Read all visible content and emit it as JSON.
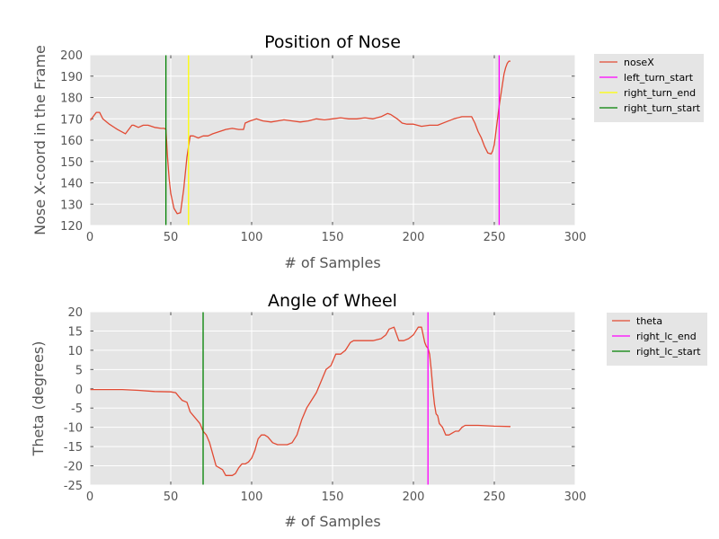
{
  "chart_data": [
    {
      "type": "line",
      "title": "Position of Nose",
      "xlabel": "# of Samples",
      "ylabel": "Nose X-coord in the Frame",
      "xlim": [
        0,
        300
      ],
      "ylim": [
        120,
        200
      ],
      "xticks": [
        0,
        50,
        100,
        150,
        200,
        250,
        300
      ],
      "yticks": [
        120,
        130,
        140,
        150,
        160,
        170,
        180,
        190,
        200
      ],
      "grid": true,
      "legend_position": "outside-right",
      "background": "#e5e5e5",
      "series": [
        {
          "name": "noseX",
          "color": "#e24a33",
          "x": [
            0,
            2,
            4,
            6,
            8,
            12,
            17,
            22,
            26,
            27,
            30,
            33,
            36,
            40,
            44,
            46,
            47,
            48,
            49,
            50,
            52,
            54,
            56,
            58,
            60,
            62,
            64,
            67,
            70,
            73,
            76,
            80,
            84,
            88,
            92,
            95,
            96,
            99,
            103,
            107,
            112,
            116,
            120,
            125,
            130,
            135,
            140,
            145,
            150,
            155,
            160,
            165,
            170,
            175,
            180,
            184,
            186,
            188,
            190,
            193,
            196,
            200,
            205,
            210,
            215,
            220,
            225,
            230,
            233,
            236,
            238,
            240,
            242,
            244,
            246,
            248,
            249,
            250,
            251,
            252,
            253,
            254,
            255,
            256,
            257,
            258,
            259,
            260
          ],
          "y": [
            169,
            171,
            173,
            173,
            170,
            167.5,
            165,
            163,
            167,
            167,
            166,
            167,
            167,
            166,
            165.5,
            165.5,
            165,
            152,
            142,
            135,
            128,
            125.5,
            126,
            137,
            152,
            162,
            162,
            161,
            162,
            162,
            163,
            164,
            165,
            165.5,
            165,
            165,
            168,
            169,
            170,
            169,
            168.5,
            169,
            169.5,
            169,
            168.5,
            169,
            170,
            169.5,
            170,
            170.5,
            170,
            170,
            170.5,
            170,
            171,
            172.5,
            172,
            171,
            170,
            168,
            167.5,
            167.5,
            166.5,
            167,
            167,
            168.5,
            170,
            171,
            171,
            171,
            168,
            164,
            161,
            157,
            154,
            153.5,
            155,
            158,
            164,
            170,
            176,
            181,
            186,
            191,
            194,
            196,
            197,
            197
          ]
        },
        {
          "name": "left_turn_start",
          "color": "#ff00ff",
          "x_line": 253
        },
        {
          "name": "right_turn_end",
          "color": "#ffff00",
          "x_line": 61
        },
        {
          "name": "right_turn_start",
          "color": "#008000",
          "x_line": 47
        }
      ]
    },
    {
      "type": "line",
      "title": "Angle of Wheel",
      "xlabel": "# of Samples",
      "ylabel": "Theta (degrees)",
      "xlim": [
        0,
        300
      ],
      "ylim": [
        -25,
        20
      ],
      "xticks": [
        0,
        50,
        100,
        150,
        200,
        250,
        300
      ],
      "yticks": [
        -25,
        -20,
        -15,
        -10,
        -5,
        0,
        5,
        10,
        15,
        20
      ],
      "grid": true,
      "legend_position": "outside-right",
      "background": "#e5e5e5",
      "series": [
        {
          "name": "theta",
          "color": "#e24a33",
          "x": [
            0,
            10,
            20,
            30,
            40,
            50,
            53,
            55,
            57,
            60,
            62,
            64,
            66,
            68,
            70,
            72,
            74,
            76,
            78,
            80,
            82,
            84,
            86,
            88,
            90,
            92,
            94,
            96,
            98,
            100,
            102,
            104,
            106,
            108,
            110,
            113,
            116,
            119,
            122,
            125,
            128,
            131,
            134,
            137,
            140,
            143,
            146,
            149,
            152,
            155,
            158,
            161,
            163,
            165,
            170,
            175,
            180,
            183,
            185,
            188,
            191,
            194,
            197,
            200,
            203,
            205,
            207,
            208,
            209,
            210,
            211,
            212,
            213,
            214,
            215,
            216,
            218,
            220,
            222,
            224,
            226,
            228,
            230,
            232,
            240,
            250,
            260
          ],
          "y": [
            -0.2,
            -0.2,
            -0.2,
            -0.4,
            -0.7,
            -0.8,
            -1,
            -2,
            -3,
            -3.5,
            -6,
            -7,
            -8,
            -9,
            -11,
            -12,
            -14,
            -17,
            -20,
            -20.5,
            -21,
            -22.5,
            -22.5,
            -22.5,
            -22,
            -20.5,
            -19.5,
            -19.5,
            -19,
            -18,
            -16,
            -13,
            -12,
            -12,
            -12.5,
            -14,
            -14.5,
            -14.5,
            -14.5,
            -14,
            -12,
            -8,
            -5,
            -3,
            -1,
            2,
            5,
            6,
            9,
            9,
            10,
            12,
            12.5,
            12.5,
            12.5,
            12.5,
            13,
            14,
            15.5,
            16,
            12.5,
            12.5,
            13,
            14,
            16,
            16,
            12,
            11,
            10.5,
            9,
            5,
            0,
            -4,
            -6.5,
            -7,
            -9,
            -10,
            -12,
            -12,
            -11.5,
            -11,
            -11,
            -10,
            -9.5,
            -9.5,
            -9.7,
            -9.8
          ]
        },
        {
          "name": "right_lc_end",
          "color": "#ff00ff",
          "x_line": 209
        },
        {
          "name": "right_lc_start",
          "color": "#008000",
          "x_line": 70
        }
      ]
    }
  ]
}
